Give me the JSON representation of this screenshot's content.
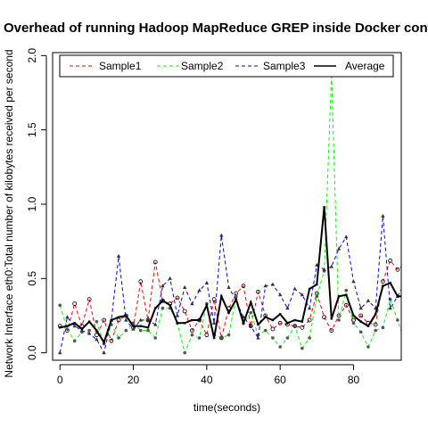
{
  "chart_data": {
    "type": "line",
    "title": "Overhead of running Hadoop MapReduce GREP inside Docker containers",
    "xlabel": "time(seconds)",
    "ylabel": "Network Interface eth0:Total number of kilobytes received per second",
    "xlim": [
      -2,
      93
    ],
    "ylim": [
      -0.05,
      2.02
    ],
    "x_ticks": [
      0,
      20,
      40,
      60,
      80
    ],
    "y_ticks": [
      0.0,
      0.5,
      1.0,
      1.5,
      2.0
    ],
    "y_tick_labels": [
      "0.0",
      "0.5",
      "1.0",
      "1.5",
      "2.0"
    ],
    "grid": false,
    "legend_position": "top",
    "x": [
      0,
      2,
      4,
      6,
      8,
      10,
      12,
      14,
      16,
      18,
      20,
      22,
      24,
      26,
      28,
      30,
      32,
      34,
      36,
      38,
      40,
      42,
      44,
      46,
      48,
      50,
      52,
      54,
      56,
      58,
      60,
      62,
      64,
      66,
      68,
      70,
      72,
      74,
      76,
      78,
      80,
      82,
      84,
      86,
      88,
      90,
      92,
      94
    ],
    "series": [
      {
        "name": "Sample1",
        "color": "#ff0000",
        "dash": "4,3",
        "values": [
          0.18,
          0.15,
          0.33,
          0.18,
          0.36,
          0.12,
          0.22,
          0.08,
          0.22,
          0.25,
          0.17,
          0.48,
          0.22,
          0.61,
          0.35,
          0.33,
          0.37,
          0.28,
          0.15,
          0.22,
          0.12,
          0.36,
          0.1,
          0.3,
          0.4,
          0.45,
          0.18,
          0.41,
          0.25,
          0.16,
          0.2,
          0.19,
          0.18,
          0.17,
          0.22,
          0.4,
          0.24,
          0.15,
          0.25,
          0.32,
          0.22,
          0.25,
          0.2,
          0.19,
          0.48,
          0.62,
          0.56,
          0.6
        ]
      },
      {
        "name": "Sample2",
        "color": "#00ff00",
        "dash": "4,3",
        "values": [
          0.32,
          0.16,
          0.08,
          0.14,
          0.15,
          0.21,
          0.06,
          0.19,
          0.1,
          0.15,
          0.2,
          0.15,
          0.15,
          0.1,
          0.3,
          0.3,
          0.2,
          0.0,
          0.12,
          0.1,
          0.33,
          0.12,
          0.1,
          0.12,
          0.38,
          0.2,
          0.27,
          0.12,
          0.15,
          0.1,
          0.04,
          0.1,
          0.18,
          0.03,
          0.1,
          0.38,
          0.55,
          1.88,
          0.22,
          0.42,
          0.2,
          0.14,
          0.04,
          0.15,
          0.17,
          0.36,
          0.22,
          0.07
        ]
      },
      {
        "name": "Sample3",
        "color": "#0000ff",
        "dash": "4,3",
        "values": [
          0.0,
          0.24,
          0.18,
          0.15,
          0.13,
          0.09,
          0.0,
          0.22,
          0.65,
          0.22,
          0.16,
          0.22,
          0.22,
          0.19,
          0.45,
          0.5,
          0.25,
          0.44,
          0.33,
          0.42,
          0.47,
          0.2,
          0.79,
          0.44,
          0.35,
          0.24,
          0.18,
          0.1,
          0.45,
          0.46,
          0.39,
          0.3,
          0.43,
          0.39,
          0.3,
          0.59,
          0.56,
          0.58,
          0.7,
          0.78,
          0.48,
          0.3,
          0.35,
          0.3,
          0.92,
          0.3,
          0.38,
          0.47
        ]
      },
      {
        "name": "Average",
        "color": "#000000",
        "dash": "",
        "values": [
          0.17,
          0.18,
          0.2,
          0.16,
          0.21,
          0.15,
          0.07,
          0.22,
          0.24,
          0.25,
          0.18,
          0.18,
          0.17,
          0.3,
          0.35,
          0.32,
          0.2,
          0.2,
          0.22,
          0.22,
          0.32,
          0.1,
          0.38,
          0.27,
          0.36,
          0.2,
          0.34,
          0.19,
          0.24,
          0.22,
          0.26,
          0.2,
          0.22,
          0.21,
          0.43,
          0.46,
          0.98,
          0.23,
          0.38,
          0.39,
          0.25,
          0.21,
          0.18,
          0.26,
          0.45,
          0.47,
          0.38,
          0.38
        ]
      }
    ]
  }
}
